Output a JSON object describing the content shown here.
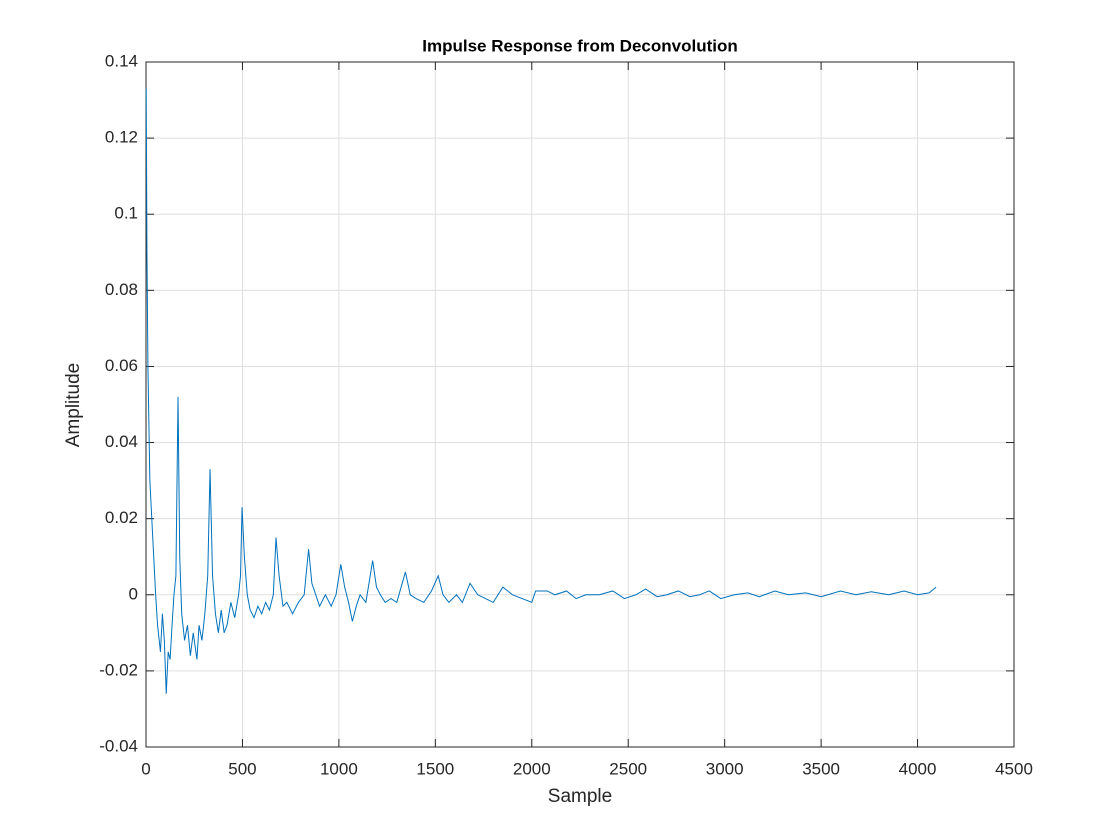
{
  "chart_data": {
    "type": "line",
    "title": "Impulse Response from Deconvolution",
    "xlabel": "Sample",
    "ylabel": "Amplitude",
    "xlim": [
      0,
      4500
    ],
    "xticks": [
      0,
      500,
      1000,
      1500,
      2000,
      2500,
      3000,
      3500,
      4000,
      4500
    ],
    "ylim": [
      -0.04,
      0.14
    ],
    "yticks": [
      -0.04,
      -0.02,
      0,
      0.02,
      0.04,
      0.06,
      0.08,
      0.1,
      0.12,
      0.14
    ],
    "grid": true,
    "x": [
      1,
      5,
      10,
      20,
      30,
      50,
      60,
      75,
      85,
      95,
      105,
      115,
      125,
      135,
      145,
      155,
      166,
      175,
      185,
      200,
      215,
      230,
      245,
      264,
      275,
      290,
      305,
      320,
      332,
      345,
      360,
      375,
      390,
      405,
      420,
      440,
      460,
      480,
      490,
      498,
      510,
      525,
      540,
      560,
      580,
      600,
      620,
      640,
      660,
      674,
      690,
      710,
      730,
      760,
      790,
      820,
      843,
      860,
      880,
      900,
      930,
      960,
      985,
      1010,
      1030,
      1050,
      1070,
      1090,
      1110,
      1140,
      1175,
      1195,
      1215,
      1240,
      1270,
      1300,
      1345,
      1370,
      1400,
      1440,
      1480,
      1515,
      1540,
      1570,
      1610,
      1640,
      1680,
      1720,
      1760,
      1800,
      1850,
      1900,
      1950,
      2000,
      2020,
      2080,
      2120,
      2180,
      2230,
      2280,
      2350,
      2420,
      2480,
      2540,
      2590,
      2650,
      2700,
      2760,
      2820,
      2870,
      2920,
      2980,
      3050,
      3120,
      3180,
      3260,
      3330,
      3420,
      3500,
      3600,
      3680,
      3760,
      3850,
      3930,
      4000,
      4060,
      4096
    ],
    "series": [
      {
        "name": "Impulse response",
        "color": "#0072BD",
        "values": [
          0.133,
          0.09,
          0.06,
          0.03,
          0.02,
          0.0,
          -0.008,
          -0.015,
          -0.005,
          -0.012,
          -0.026,
          -0.015,
          -0.017,
          -0.008,
          0.0,
          0.005,
          0.052,
          0.01,
          -0.005,
          -0.012,
          -0.008,
          -0.016,
          -0.01,
          -0.017,
          -0.008,
          -0.012,
          -0.005,
          0.005,
          0.033,
          0.005,
          -0.005,
          -0.01,
          -0.004,
          -0.01,
          -0.008,
          -0.002,
          -0.006,
          0.0,
          0.005,
          0.023,
          0.01,
          0.0,
          -0.004,
          -0.006,
          -0.003,
          -0.005,
          -0.002,
          -0.004,
          0.0,
          0.015,
          0.005,
          -0.003,
          -0.002,
          -0.005,
          -0.002,
          0.0,
          0.012,
          0.003,
          0.0,
          -0.003,
          0.0,
          -0.003,
          0.0,
          0.008,
          0.002,
          -0.002,
          -0.007,
          -0.003,
          0.0,
          -0.002,
          0.009,
          0.002,
          0.0,
          -0.002,
          -0.001,
          -0.002,
          0.006,
          0.0,
          -0.001,
          -0.002,
          0.001,
          0.005,
          0.0,
          -0.002,
          0.0,
          -0.002,
          0.003,
          0.0,
          -0.001,
          -0.002,
          0.002,
          0.0,
          -0.001,
          -0.002,
          0.001,
          0.001,
          0.0,
          0.001,
          -0.001,
          0.0,
          0.0,
          0.001,
          -0.001,
          0.0,
          0.0015,
          -0.0005,
          0.0,
          0.001,
          -0.0005,
          0.0,
          0.001,
          -0.001,
          0.0,
          0.0005,
          -0.0005,
          0.001,
          0.0,
          0.0005,
          -0.0005,
          0.001,
          0.0,
          0.0008,
          0.0,
          0.001,
          0.0,
          0.0005,
          0.002
        ]
      }
    ]
  }
}
